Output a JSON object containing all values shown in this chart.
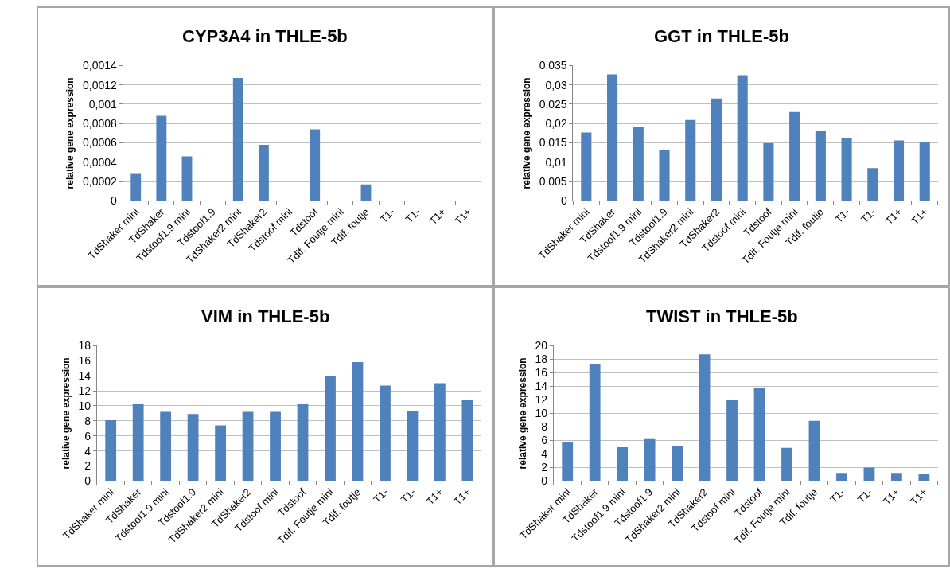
{
  "chart_data": [
    {
      "type": "bar",
      "title": "CYP3A4 in THLE-5b",
      "ylabel": "relative gene expression",
      "categories": [
        "TdShaker mini",
        "TdShaker",
        "Tdstoof1.9 mini",
        "Tdstoof1.9",
        "TdShaker2 mini",
        "TdShaker2",
        "Tdstoof mini",
        "Tdstoof",
        "Tdif. Foutje mini",
        "Tdif. foutje",
        "T1-",
        "T1-",
        "T1+",
        "T1+"
      ],
      "values": [
        0.00028,
        0.00088,
        0.00046,
        0,
        0.00127,
        0.00058,
        0,
        0.00074,
        0,
        0.00017,
        0,
        0,
        0,
        0
      ],
      "color": "#4f81bd",
      "ylim": [
        0,
        0.0014
      ],
      "yticks": [
        0,
        {
          "value": 0.0002,
          "label": "0,0002"
        },
        {
          "value": 0.0004,
          "label": "0,0004"
        },
        {
          "value": 0.0006,
          "label": "0,0006"
        },
        {
          "value": 0.0008,
          "label": "0,0008"
        },
        {
          "value": 0.001,
          "label": "0,001"
        },
        {
          "value": 0.0012,
          "label": "0,0012"
        },
        {
          "value": 0.0014,
          "label": "0,0014"
        }
      ],
      "grid": "y"
    },
    {
      "type": "bar",
      "title": "GGT in THLE-5b",
      "ylabel": "relative gene expression",
      "categories": [
        "TdShaker mini",
        "TdShaker",
        "Tdstoof1.9 mini",
        "Tdstoof1.9",
        "TdShaker2 mini",
        "TdShaker2",
        "Tdstoof mini",
        "Tdstoof",
        "Tdif. Foutje mini",
        "Tdif. foutje",
        "T1-",
        "T1-",
        "T1+",
        "T1+"
      ],
      "values": [
        0.0177,
        0.0327,
        0.0192,
        0.0131,
        0.0209,
        0.0265,
        0.0325,
        0.0149,
        0.023,
        0.018,
        0.0163,
        0.0085,
        0.0156,
        0.0152
      ],
      "color": "#4f81bd",
      "ylim": [
        0,
        0.035
      ],
      "yticks": [
        0,
        {
          "value": 0.005,
          "label": "0,005"
        },
        {
          "value": 0.01,
          "label": "0,01"
        },
        {
          "value": 0.015,
          "label": "0,015"
        },
        {
          "value": 0.02,
          "label": "0,02"
        },
        {
          "value": 0.025,
          "label": "0,025"
        },
        {
          "value": 0.03,
          "label": "0,03"
        },
        {
          "value": 0.035,
          "label": "0,035"
        }
      ],
      "grid": "y"
    },
    {
      "type": "bar",
      "title": "VIM in THLE-5b",
      "ylabel": "relative gene expression",
      "categories": [
        "TdShaker mini",
        "TdShaker",
        "Tdstoof1.9 mini",
        "Tdstoof1.9",
        "TdShaker2 mini",
        "TdShaker2",
        "Tdstoof mini",
        "Tdstoof",
        "Tdif. Foutje mini",
        "Tdif. foutje",
        "T1-",
        "T1-",
        "T1+",
        "T1+"
      ],
      "values": [
        8.1,
        10.2,
        9.2,
        8.9,
        7.4,
        9.2,
        9.2,
        10.2,
        13.9,
        15.8,
        12.7,
        9.3,
        13.0,
        10.8
      ],
      "color": "#4f81bd",
      "ylim": [
        0,
        18
      ],
      "yticks": [
        0,
        2,
        4,
        6,
        8,
        10,
        12,
        14,
        16,
        18
      ],
      "grid": "y"
    },
    {
      "type": "bar",
      "title": "TWIST in THLE-5b",
      "ylabel": "relative gene expression",
      "categories": [
        "TdShaker mini",
        "TdShaker",
        "Tdstoof1.9 mini",
        "Tdstoof1.9",
        "TdShaker2 mini",
        "TdShaker2",
        "Tdstoof mini",
        "Tdstoof",
        "Tdif. Foutje mini",
        "Tdif. foutje",
        "T1-",
        "T1-",
        "T1+",
        "T1+"
      ],
      "values": [
        5.7,
        17.3,
        5.0,
        6.3,
        5.2,
        18.7,
        12.0,
        13.8,
        4.9,
        8.9,
        1.2,
        2.0,
        1.2,
        1.0
      ],
      "color": "#4f81bd",
      "ylim": [
        0,
        20
      ],
      "yticks": [
        0,
        2,
        4,
        6,
        8,
        10,
        12,
        14,
        16,
        18,
        20
      ],
      "grid": "y"
    }
  ]
}
